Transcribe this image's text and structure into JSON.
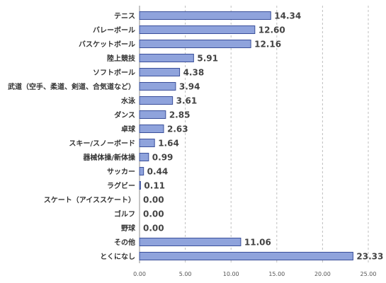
{
  "chart_data": {
    "type": "bar",
    "orientation": "horizontal",
    "categories": [
      "テニス",
      "バレーボール",
      "バスケットボール",
      "陸上競技",
      "ソフトボール",
      "武道（空手、柔道、剣道、合気道など）",
      "水泳",
      "ダンス",
      "卓球",
      "スキー/スノーボード",
      "器械体操/新体操",
      "サッカー",
      "ラグビー",
      "スケート（アイススケート）",
      "ゴルフ",
      "野球",
      "その他",
      "とくになし"
    ],
    "values": [
      14.34,
      12.6,
      12.16,
      5.91,
      4.38,
      3.94,
      3.61,
      2.85,
      2.63,
      1.64,
      0.99,
      0.44,
      0.11,
      0.0,
      0.0,
      0.0,
      11.06,
      23.33
    ],
    "value_labels": [
      "14.34",
      "12.60",
      "12.16",
      "5.91",
      "4.38",
      "3.94",
      "3.61",
      "2.85",
      "2.63",
      "1.64",
      "0.99",
      "0.44",
      "0.11",
      "0.00",
      "0.00",
      "0.00",
      "11.06",
      "23.33"
    ],
    "xticks": [
      "0.00",
      "5.00",
      "10.00",
      "15.00",
      "20.00",
      "25.00"
    ],
    "xlim": [
      0,
      25
    ],
    "title": "",
    "xlabel": "",
    "ylabel": "",
    "grid": true,
    "legend": "none",
    "bar_color": "#8fa3dc",
    "bar_edge_color": "#3a4f9a"
  }
}
